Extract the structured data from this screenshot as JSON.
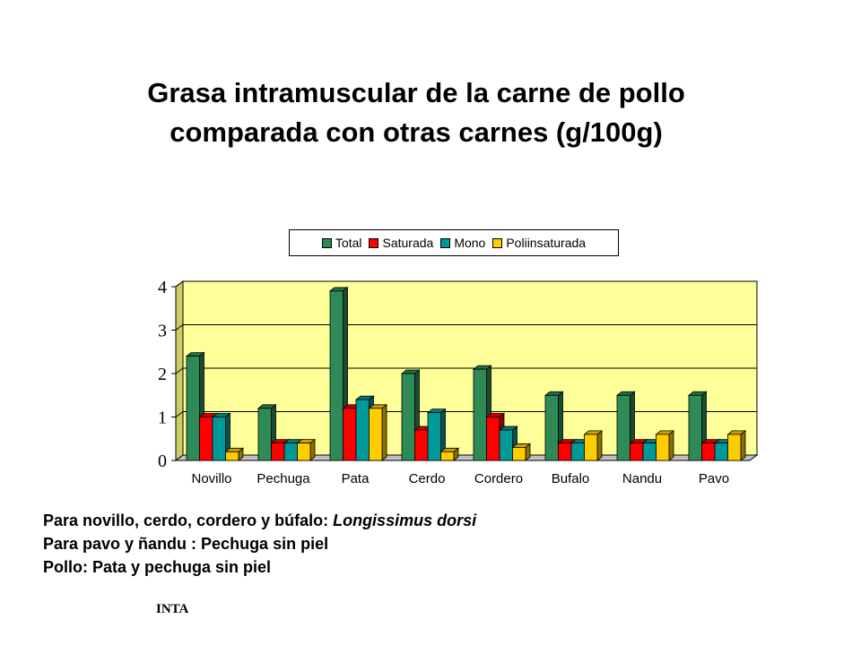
{
  "title_lines": [
    "Grasa intramuscular de la carne de pollo",
    "comparada con otras carnes (g/100g)"
  ],
  "chart_data": {
    "type": "bar",
    "categories": [
      "Novillo",
      "Pechuga",
      "Pata",
      "Cerdo",
      "Cordero",
      "Bufalo",
      "Nandu",
      "Pavo"
    ],
    "series": [
      {
        "name": "Total",
        "color": "#2e8b57",
        "values": [
          2.4,
          1.2,
          3.9,
          2.0,
          2.1,
          1.5,
          1.5,
          1.5
        ]
      },
      {
        "name": "Saturada",
        "color": "#ff0000",
        "values": [
          1.0,
          0.4,
          1.2,
          0.7,
          1.0,
          0.4,
          0.4,
          0.4
        ]
      },
      {
        "name": "Mono",
        "color": "#009999",
        "values": [
          1.0,
          0.4,
          1.4,
          1.1,
          0.7,
          0.4,
          0.4,
          0.4
        ]
      },
      {
        "name": "Poliinsaturada",
        "color": "#ffcc00",
        "values": [
          0.2,
          0.4,
          1.2,
          0.2,
          0.3,
          0.6,
          0.6,
          0.6
        ]
      }
    ],
    "yticks": [
      "0",
      "1",
      "2",
      "3",
      "4"
    ],
    "ylim": [
      0,
      4
    ],
    "grid": true,
    "legend_position": "top",
    "plot_background": "#ffff99"
  },
  "notes": {
    "line1_prefix": "Para novillo, cerdo, cordero y búfalo: ",
    "line1_italic": "Longissimus dorsi",
    "line2": "Para pavo y ñandu : Pechuga sin piel",
    "line3": "Pollo: Pata y pechuga sin piel"
  },
  "source": "INTA"
}
